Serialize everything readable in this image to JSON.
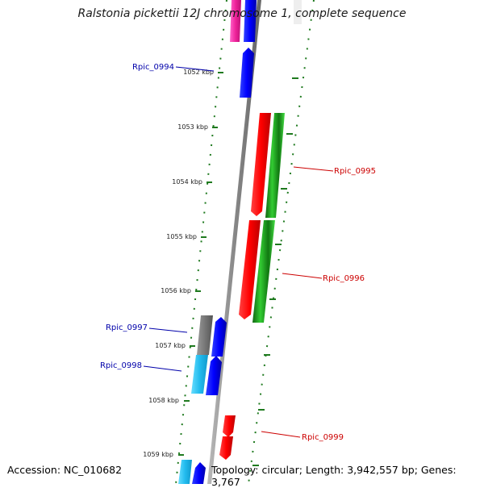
{
  "title": "Ralstonia pickettii 12J chromosome 1, complete sequence",
  "footer": {
    "accession": "Accession: NC_010682",
    "topology": "Topology: circular; Length: 3,942,557 bp; Genes: 3,767"
  },
  "ticks": [
    "1052 kbp",
    "1053 kbp",
    "1054 kbp",
    "1055 kbp",
    "1056 kbp",
    "1057 kbp",
    "1058 kbp",
    "1059 kbp"
  ],
  "genes": [
    {
      "name": "Rpic_0994",
      "color": "#0000aa"
    },
    {
      "name": "Rpic_0995",
      "color": "#cc0000"
    },
    {
      "name": "Rpic_0996",
      "color": "#cc0000"
    },
    {
      "name": "Rpic_0997",
      "color": "#0000aa"
    },
    {
      "name": "Rpic_0998",
      "color": "#0000aa"
    },
    {
      "name": "Rpic_0999",
      "color": "#cc0000"
    }
  ],
  "colors": {
    "backbone": "#8a8a8a",
    "tick": "#1f7a1f",
    "forward_gene": "#ff0000",
    "reverse_gene": "#0000ff",
    "feature_green": "#22bb22",
    "feature_gray": "#777777",
    "feature_cyan": "#22bbee",
    "feature_magenta": "#ee2299"
  }
}
